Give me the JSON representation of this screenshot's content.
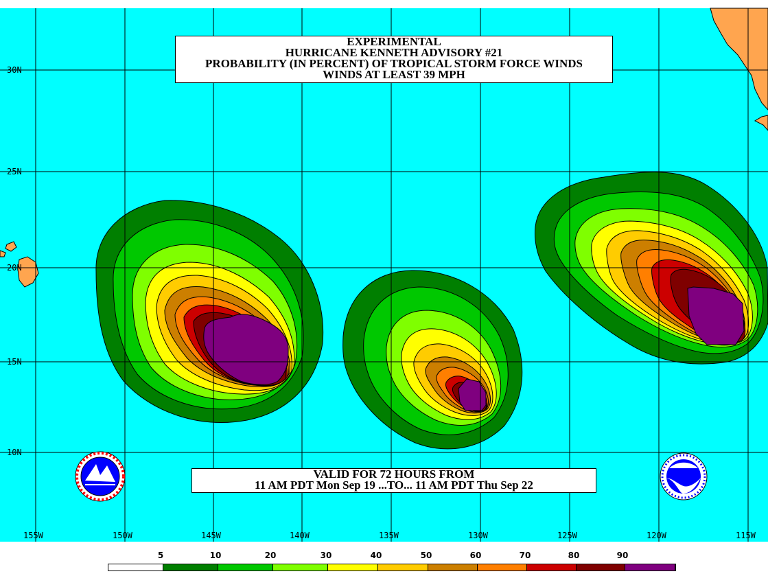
{
  "title": {
    "line1": "EXPERIMENTAL",
    "line2": "HURRICANE KENNETH ADVISORY #21",
    "line3": "PROBABILITY (IN PERCENT) OF TROPICAL STORM FORCE WINDS",
    "line4": "WINDS AT LEAST 39 MPH"
  },
  "valid": {
    "line1": "VALID FOR 72 HOURS FROM",
    "line2": "11 AM PDT Mon Sep 19 ...TO... 11 AM PDT Thu Sep 22"
  },
  "lat_labels": [
    "30N",
    "25N",
    "20N",
    "15N",
    "10N"
  ],
  "lon_labels": [
    "155W",
    "150W",
    "145W",
    "140W",
    "135W",
    "130W",
    "125W",
    "120W",
    "115W"
  ],
  "legend": {
    "labels": [
      "5",
      "10",
      "20",
      "30",
      "40",
      "50",
      "60",
      "70",
      "80",
      "90"
    ],
    "colors": [
      "#ffffff",
      "#007f00",
      "#00c800",
      "#7fff00",
      "#ffff00",
      "#ffcc00",
      "#cc7f00",
      "#ff7f00",
      "#cc0000",
      "#7f0000",
      "#7f007f"
    ]
  },
  "colors": {
    "ocean": "#00ffff",
    "land": "#ffa54f",
    "grid": "#000000"
  },
  "logos": {
    "left": "nws-logo",
    "right": "noaa-logo",
    "noaa_text": "NOAA"
  }
}
